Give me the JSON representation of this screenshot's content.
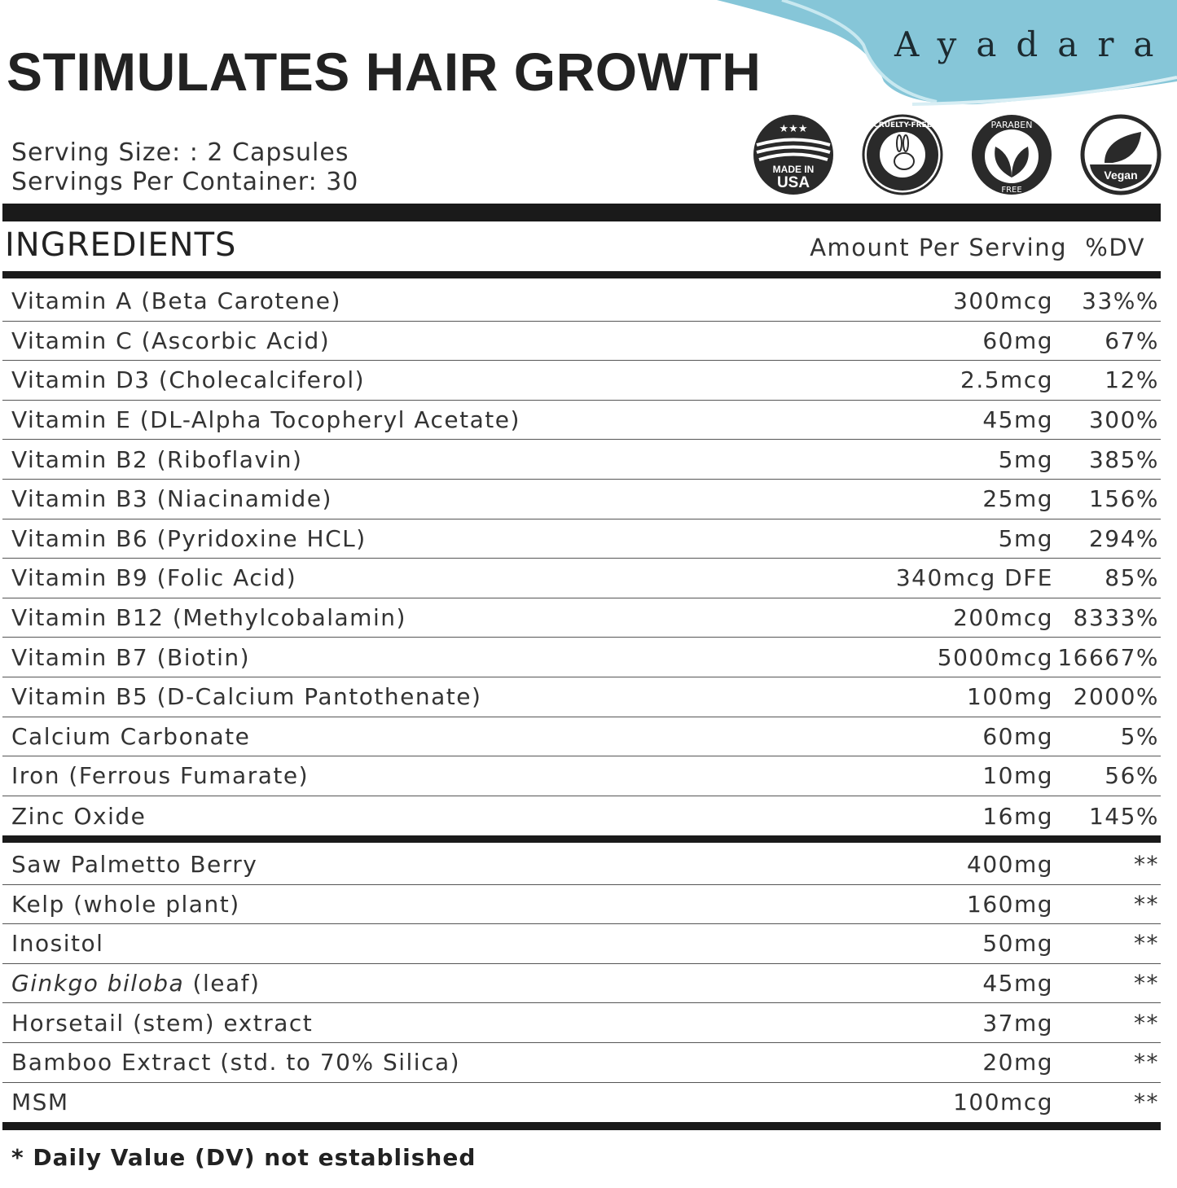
{
  "brand": {
    "name": "Ayadara",
    "accent": "#86c6d8"
  },
  "title": "STIMULATES HAIR GROWTH",
  "serving": {
    "size": "Serving Size: : 2 Capsules",
    "per_container": "Servings Per Container: 30"
  },
  "badges": [
    {
      "icon": "made-in-usa-icon",
      "text1": "MADE IN",
      "text2": "USA"
    },
    {
      "icon": "cruelty-free-icon",
      "text1": "CRUELTY-FREE"
    },
    {
      "icon": "paraben-free-icon",
      "text1": "PARABEN",
      "text2": "FREE"
    },
    {
      "icon": "vegan-icon",
      "text1": "Vegan"
    }
  ],
  "header": {
    "ingredients": "INGREDIENTS",
    "amount": "Amount Per Serving",
    "dv": "%DV"
  },
  "vitamins": [
    {
      "name": "Vitamin A (Beta Carotene)",
      "amount": "300mcg",
      "dv": "33%%"
    },
    {
      "name": "Vitamin C (Ascorbic Acid)",
      "amount": "60mg",
      "dv": "67%"
    },
    {
      "name": "Vitamin D3 (Cholecalciferol)",
      "amount": "2.5mcg",
      "dv": "12%"
    },
    {
      "name": "Vitamin E (DL-Alpha Tocopheryl Acetate)",
      "amount": "45mg",
      "dv": "300%"
    },
    {
      "name": "Vitamin B2 (Riboflavin)",
      "amount": "5mg",
      "dv": "385%"
    },
    {
      "name": "Vitamin B3 (Niacinamide)",
      "amount": "25mg",
      "dv": "156%"
    },
    {
      "name": "Vitamin B6 (Pyridoxine HCL)",
      "amount": "5mg",
      "dv": "294%"
    },
    {
      "name": "Vitamin B9 (Folic Acid)",
      "amount": "340mcg DFE",
      "dv": "85%"
    },
    {
      "name": "Vitamin B12 (Methylcobalamin)",
      "amount": "200mcg",
      "dv": "8333%"
    },
    {
      "name": "Vitamin B7 (Biotin)",
      "amount": "5000mcg",
      "dv": "16667%"
    },
    {
      "name": "Vitamin B5 (D-Calcium Pantothenate)",
      "amount": "100mg",
      "dv": "2000%"
    },
    {
      "name": "Calcium Carbonate",
      "amount": "60mg",
      "dv": "5%"
    },
    {
      "name": "Iron (Ferrous Fumarate)",
      "amount": "10mg",
      "dv": "56%"
    },
    {
      "name": "Zinc Oxide",
      "amount": "16mg",
      "dv": "145%"
    }
  ],
  "botanicals": [
    {
      "name": "Saw Palmetto Berry",
      "amount": "400mg",
      "dv": "**"
    },
    {
      "name": "Kelp (whole plant)",
      "amount": "160mg",
      "dv": "**"
    },
    {
      "name": "Inositol",
      "amount": "50mg",
      "dv": "**"
    },
    {
      "name_italic": "Ginkgo biloba",
      "name": " (leaf)",
      "amount": "45mg",
      "dv": "**"
    },
    {
      "name": "Horsetail (stem) extract",
      "amount": "37mg",
      "dv": "**"
    },
    {
      "name": "Bamboo Extract (std. to 70% Silica)",
      "amount": "20mg",
      "dv": "**"
    },
    {
      "name": "MSM",
      "amount": "100mcg",
      "dv": "**"
    }
  ],
  "footnote": "* Daily Value (DV) not established"
}
